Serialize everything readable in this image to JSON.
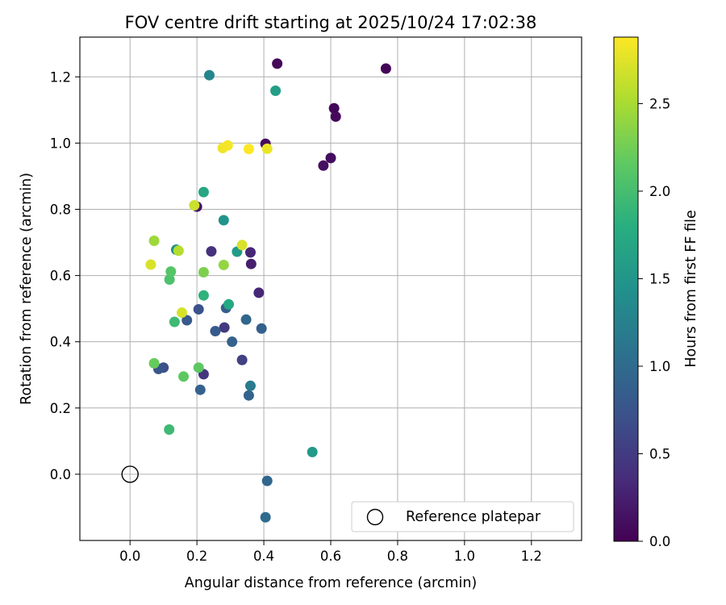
{
  "chart_data": {
    "type": "scatter",
    "title": "FOV centre drift starting at 2025/10/24 17:02:38",
    "xlabel": "Angular distance from reference (arcmin)",
    "ylabel": "Rotation from reference (arcmin)",
    "xlim": [
      -0.15,
      1.35
    ],
    "ylim": [
      -0.2,
      1.32
    ],
    "xticks": [
      0.0,
      0.2,
      0.4,
      0.6,
      0.8,
      1.0,
      1.2
    ],
    "xtick_labels": [
      "0.0",
      "0.2",
      "0.4",
      "0.6",
      "0.8",
      "1.0",
      "1.2"
    ],
    "yticks": [
      0.0,
      0.2,
      0.4,
      0.6,
      0.8,
      1.0,
      1.2
    ],
    "ytick_labels": [
      "0.0",
      "0.2",
      "0.4",
      "0.6",
      "0.8",
      "1.0",
      "1.2"
    ],
    "grid": true,
    "colorbar": {
      "label": "Hours from first FF file",
      "range": [
        0,
        2.88
      ],
      "ticks": [
        0.0,
        0.5,
        1.0,
        1.5,
        2.0,
        2.5
      ],
      "tick_labels": [
        "0.0",
        "0.5",
        "1.0",
        "1.5",
        "2.0",
        "2.5"
      ],
      "colormap": "viridis"
    },
    "reference_point": {
      "x": 0.0,
      "y": 0.0,
      "label": "Reference platepar"
    },
    "legend": {
      "position": "lower-right",
      "entries": [
        "Reference platepar"
      ]
    },
    "points": [
      {
        "x": 0.44,
        "y": 1.24,
        "c": 0.05
      },
      {
        "x": 0.765,
        "y": 1.225,
        "c": 0.03
      },
      {
        "x": 0.61,
        "y": 1.105,
        "c": 0.04
      },
      {
        "x": 0.615,
        "y": 1.08,
        "c": 0.06
      },
      {
        "x": 0.405,
        "y": 0.998,
        "c": 0.08
      },
      {
        "x": 0.6,
        "y": 0.955,
        "c": 0.1
      },
      {
        "x": 0.578,
        "y": 0.932,
        "c": 0.12
      },
      {
        "x": 0.2,
        "y": 0.808,
        "c": 0.15
      },
      {
        "x": 0.36,
        "y": 0.67,
        "c": 0.3
      },
      {
        "x": 0.362,
        "y": 0.635,
        "c": 0.25
      },
      {
        "x": 0.243,
        "y": 0.673,
        "c": 0.4
      },
      {
        "x": 0.385,
        "y": 0.548,
        "c": 0.3
      },
      {
        "x": 0.22,
        "y": 0.302,
        "c": 0.45
      },
      {
        "x": 0.282,
        "y": 0.443,
        "c": 0.5
      },
      {
        "x": 0.335,
        "y": 0.345,
        "c": 0.55
      },
      {
        "x": 0.1,
        "y": 0.322,
        "c": 0.7
      },
      {
        "x": 0.085,
        "y": 0.318,
        "c": 0.75
      },
      {
        "x": 0.17,
        "y": 0.465,
        "c": 0.8
      },
      {
        "x": 0.205,
        "y": 0.498,
        "c": 0.72
      },
      {
        "x": 0.287,
        "y": 0.502,
        "c": 0.85
      },
      {
        "x": 0.255,
        "y": 0.432,
        "c": 0.82
      },
      {
        "x": 0.305,
        "y": 0.4,
        "c": 0.9
      },
      {
        "x": 0.347,
        "y": 0.467,
        "c": 0.95
      },
      {
        "x": 0.393,
        "y": 0.44,
        "c": 0.88
      },
      {
        "x": 0.21,
        "y": 0.255,
        "c": 0.9
      },
      {
        "x": 0.355,
        "y": 0.238,
        "c": 0.92
      },
      {
        "x": 0.36,
        "y": 0.267,
        "c": 1.18
      },
      {
        "x": 0.41,
        "y": -0.02,
        "c": 0.95
      },
      {
        "x": 0.405,
        "y": -0.13,
        "c": 1.0
      },
      {
        "x": 0.237,
        "y": 1.205,
        "c": 1.3
      },
      {
        "x": 0.138,
        "y": 0.678,
        "c": 1.45
      },
      {
        "x": 0.28,
        "y": 0.767,
        "c": 1.48
      },
      {
        "x": 0.545,
        "y": 0.067,
        "c": 1.55
      },
      {
        "x": 0.32,
        "y": 0.672,
        "c": 1.55
      },
      {
        "x": 0.435,
        "y": 1.158,
        "c": 1.6
      },
      {
        "x": 0.22,
        "y": 0.852,
        "c": 1.7
      },
      {
        "x": 0.295,
        "y": 0.513,
        "c": 1.72
      },
      {
        "x": 0.22,
        "y": 0.54,
        "c": 1.85
      },
      {
        "x": 0.133,
        "y": 0.46,
        "c": 1.95
      },
      {
        "x": 0.117,
        "y": 0.135,
        "c": 1.95
      },
      {
        "x": 0.118,
        "y": 0.588,
        "c": 2.05
      },
      {
        "x": 0.122,
        "y": 0.612,
        "c": 2.1
      },
      {
        "x": 0.16,
        "y": 0.295,
        "c": 2.15
      },
      {
        "x": 0.205,
        "y": 0.322,
        "c": 2.15
      },
      {
        "x": 0.072,
        "y": 0.335,
        "c": 2.2
      },
      {
        "x": 0.22,
        "y": 0.61,
        "c": 2.3
      },
      {
        "x": 0.28,
        "y": 0.632,
        "c": 2.4
      },
      {
        "x": 0.072,
        "y": 0.705,
        "c": 2.45
      },
      {
        "x": 0.145,
        "y": 0.675,
        "c": 2.55
      },
      {
        "x": 0.192,
        "y": 0.812,
        "c": 2.65
      },
      {
        "x": 0.155,
        "y": 0.488,
        "c": 2.7
      },
      {
        "x": 0.062,
        "y": 0.633,
        "c": 2.72
      },
      {
        "x": 0.335,
        "y": 0.692,
        "c": 2.72
      },
      {
        "x": 0.41,
        "y": 0.983,
        "c": 2.8
      },
      {
        "x": 0.277,
        "y": 0.985,
        "c": 2.82
      },
      {
        "x": 0.292,
        "y": 0.993,
        "c": 2.84
      },
      {
        "x": 0.355,
        "y": 0.982,
        "c": 2.88
      }
    ]
  }
}
